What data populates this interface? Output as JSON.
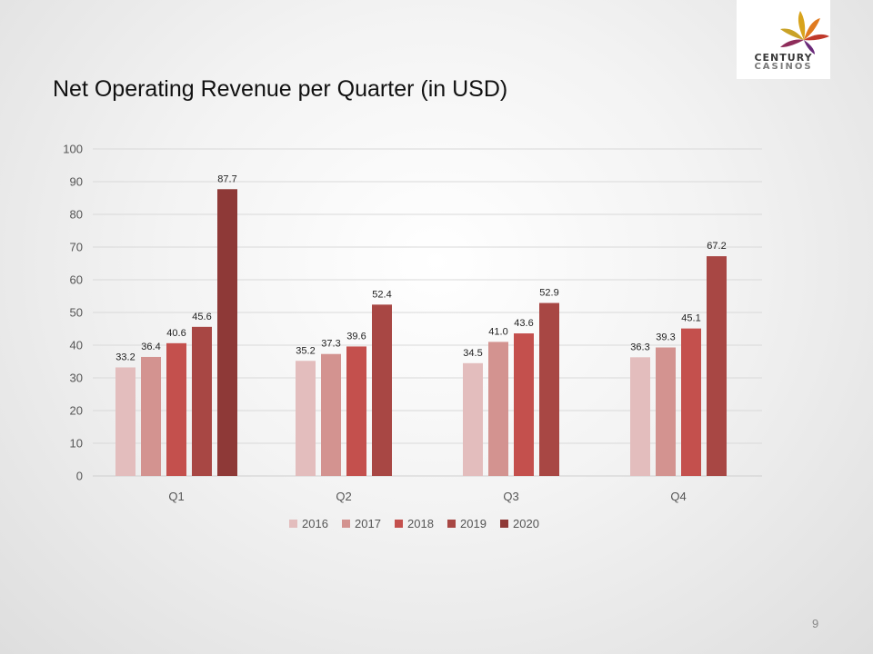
{
  "slide": {
    "title": "Net Operating Revenue per Quarter (in USD)",
    "page_number": "9"
  },
  "logo": {
    "line1": "CENTURY",
    "line2": "CASINOS"
  },
  "colors": {
    "2016": "#e3bdbd",
    "2017": "#d39390",
    "2018": "#c4504d",
    "2019": "#a84744",
    "2020": "#8e3937"
  },
  "chart_data": {
    "type": "bar",
    "categories": [
      "Q1",
      "Q2",
      "Q3",
      "Q4"
    ],
    "series": [
      {
        "name": "2016",
        "values": [
          33.2,
          35.2,
          34.5,
          36.3
        ]
      },
      {
        "name": "2017",
        "values": [
          36.4,
          37.3,
          41.0,
          39.3
        ]
      },
      {
        "name": "2018",
        "values": [
          40.6,
          39.6,
          43.6,
          45.1
        ]
      },
      {
        "name": "2019",
        "values": [
          45.6,
          52.4,
          52.9,
          67.2
        ]
      },
      {
        "name": "2020",
        "values": [
          87.7,
          null,
          null,
          null
        ]
      }
    ],
    "ylim": [
      0,
      100
    ],
    "yticks": [
      "0",
      "10",
      "20",
      "30",
      "40",
      "50",
      "60",
      "70",
      "80",
      "90",
      "100"
    ],
    "grid": true,
    "legend": "bottom"
  }
}
